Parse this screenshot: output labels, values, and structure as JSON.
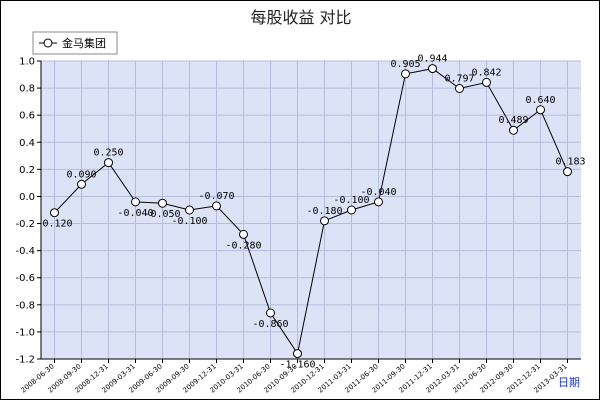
{
  "chart_data": {
    "type": "line",
    "title": "每股收益  对比",
    "xlabel": "日期",
    "ylabel": "",
    "ylim": [
      -1.2,
      1.0
    ],
    "yticks": [
      "1.0",
      "0.8",
      "0.6",
      "0.4",
      "0.2",
      "0.0",
      "-0.2",
      "-0.4",
      "-0.6",
      "-0.8",
      "-1.0",
      "-1.2"
    ],
    "grid": true,
    "legend_position": "top-left",
    "categories": [
      "2008-06-30",
      "2008-09-30",
      "2008-12-31",
      "2009-03-31",
      "2009-06-30",
      "2009-09-30",
      "2009-12-31",
      "2010-03-31",
      "2010-06-30",
      "2010-09-30",
      "2010-12-31",
      "2011-03-31",
      "2011-06-30",
      "2011-09-30",
      "2011-12-31",
      "2012-03-31",
      "2012-06-30",
      "2012-09-30",
      "2012-12-31",
      "2013-03-31"
    ],
    "series": [
      {
        "name": "金马集团",
        "color": "#000000",
        "values": [
          -0.12,
          0.09,
          0.25,
          -0.04,
          -0.05,
          -0.1,
          -0.07,
          -0.28,
          -0.86,
          -1.16,
          -0.18,
          -0.1,
          -0.04,
          0.905,
          0.944,
          0.797,
          0.842,
          0.489,
          0.64,
          0.183
        ],
        "labels": [
          "-0.120",
          "0.090",
          "0.250",
          "-0.040",
          "-0.050",
          "-0.100",
          "-0.070",
          "-0.280",
          "-0.860",
          "-1.160",
          "-0.180",
          "-0.100",
          "-0.040",
          "0.905",
          "0.944",
          "0.797",
          "0.842",
          "0.489",
          "0.640",
          "0.183"
        ]
      }
    ],
    "colors": {
      "plot_background": "#dde3f7",
      "grid": "#b4bedc",
      "line": "#000000"
    }
  }
}
